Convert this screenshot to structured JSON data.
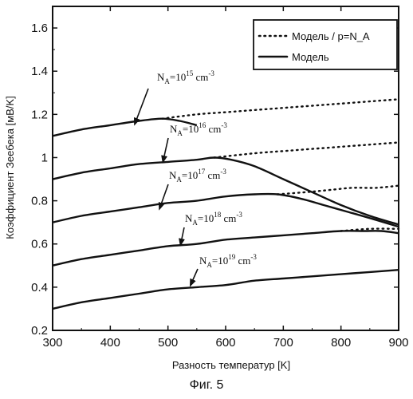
{
  "figure": {
    "caption": "Фиг. 5"
  },
  "chart_data": {
    "type": "line",
    "title": "",
    "xlabel": "Разность температур [K]",
    "ylabel": "Коэффициент Зеебека [мВ/K]",
    "xlim": [
      300,
      900
    ],
    "ylim": [
      0.2,
      1.7
    ],
    "x_ticks": [
      300,
      400,
      500,
      600,
      700,
      800,
      900
    ],
    "y_ticks": [
      0.2,
      0.4,
      0.6,
      0.8,
      1,
      1.2,
      1.4,
      1.6
    ],
    "x_tick_labels": [
      "300",
      "400",
      "500",
      "600",
      "700",
      "800",
      "900"
    ],
    "y_tick_labels": [
      "0.2",
      "0.4",
      "0.6",
      "0.8",
      "1",
      "1.2",
      "1.4",
      "1.6"
    ],
    "grid": false,
    "legend": {
      "position": "top-right",
      "entries": [
        {
          "label": "Модель / p=N_A",
          "style": "dotted"
        },
        {
          "label": "Модель",
          "style": "solid"
        }
      ]
    },
    "series": [
      {
        "name": "N_A=10^15 cm^-3",
        "annotation": {
          "base": "N",
          "sub": "A",
          "mid": "=10",
          "sup": "15",
          "unit": " cm",
          "unit_sup": "-3"
        },
        "solid": [
          [
            300,
            1.1
          ],
          [
            350,
            1.13
          ],
          [
            400,
            1.15
          ],
          [
            450,
            1.17
          ],
          [
            490,
            1.18
          ],
          [
            520,
            1.17
          ],
          [
            550,
            1.15
          ]
        ],
        "dotted": [
          [
            490,
            1.18
          ],
          [
            550,
            1.2
          ],
          [
            600,
            1.21
          ],
          [
            650,
            1.22
          ],
          [
            700,
            1.23
          ],
          [
            750,
            1.24
          ],
          [
            800,
            1.25
          ],
          [
            850,
            1.26
          ],
          [
            900,
            1.27
          ]
        ]
      },
      {
        "name": "N_A=10^16 cm^-3",
        "annotation": {
          "base": "N",
          "sub": "A",
          "mid": "=10",
          "sup": "16",
          "unit": " cm",
          "unit_sup": "-3"
        },
        "solid": [
          [
            300,
            0.9
          ],
          [
            350,
            0.93
          ],
          [
            400,
            0.95
          ],
          [
            450,
            0.97
          ],
          [
            500,
            0.98
          ],
          [
            550,
            0.99
          ],
          [
            580,
            1.0
          ],
          [
            610,
            0.99
          ],
          [
            650,
            0.96
          ],
          [
            700,
            0.9
          ],
          [
            750,
            0.84
          ],
          [
            800,
            0.78
          ],
          [
            850,
            0.73
          ],
          [
            900,
            0.69
          ]
        ],
        "dotted": [
          [
            580,
            1.0
          ],
          [
            650,
            1.02
          ],
          [
            700,
            1.03
          ],
          [
            750,
            1.04
          ],
          [
            800,
            1.05
          ],
          [
            850,
            1.06
          ],
          [
            900,
            1.07
          ]
        ]
      },
      {
        "name": "N_A=10^17 cm^-3",
        "annotation": {
          "base": "N",
          "sub": "A",
          "mid": "=10",
          "sup": "17",
          "unit": " cm",
          "unit_sup": "-3"
        },
        "solid": [
          [
            300,
            0.7
          ],
          [
            350,
            0.73
          ],
          [
            400,
            0.75
          ],
          [
            450,
            0.77
          ],
          [
            500,
            0.79
          ],
          [
            550,
            0.8
          ],
          [
            600,
            0.82
          ],
          [
            650,
            0.83
          ],
          [
            690,
            0.83
          ],
          [
            730,
            0.81
          ],
          [
            770,
            0.78
          ],
          [
            810,
            0.75
          ],
          [
            850,
            0.72
          ],
          [
            900,
            0.68
          ]
        ],
        "dotted": [
          [
            690,
            0.83
          ],
          [
            740,
            0.84
          ],
          [
            780,
            0.85
          ],
          [
            820,
            0.86
          ],
          [
            860,
            0.86
          ],
          [
            900,
            0.87
          ]
        ]
      },
      {
        "name": "N_A=10^18 cm^-3",
        "annotation": {
          "base": "N",
          "sub": "A",
          "mid": "=10",
          "sup": "18",
          "unit": " cm",
          "unit_sup": "-3"
        },
        "solid": [
          [
            300,
            0.5
          ],
          [
            350,
            0.53
          ],
          [
            400,
            0.55
          ],
          [
            450,
            0.57
          ],
          [
            500,
            0.59
          ],
          [
            550,
            0.6
          ],
          [
            600,
            0.62
          ],
          [
            650,
            0.63
          ],
          [
            700,
            0.64
          ],
          [
            750,
            0.65
          ],
          [
            800,
            0.66
          ],
          [
            840,
            0.66
          ],
          [
            870,
            0.66
          ],
          [
            900,
            0.65
          ]
        ],
        "dotted": [
          [
            800,
            0.66
          ],
          [
            850,
            0.67
          ],
          [
            900,
            0.67
          ]
        ]
      },
      {
        "name": "N_A=10^19 cm^-3",
        "annotation": {
          "base": "N",
          "sub": "A",
          "mid": "=10",
          "sup": "19",
          "unit": " cm",
          "unit_sup": "-3"
        },
        "solid": [
          [
            300,
            0.3
          ],
          [
            350,
            0.33
          ],
          [
            400,
            0.35
          ],
          [
            450,
            0.37
          ],
          [
            500,
            0.39
          ],
          [
            550,
            0.4
          ],
          [
            600,
            0.41
          ],
          [
            650,
            0.43
          ],
          [
            700,
            0.44
          ],
          [
            750,
            0.45
          ],
          [
            800,
            0.46
          ],
          [
            850,
            0.47
          ],
          [
            900,
            0.48
          ]
        ],
        "dotted": []
      }
    ]
  }
}
